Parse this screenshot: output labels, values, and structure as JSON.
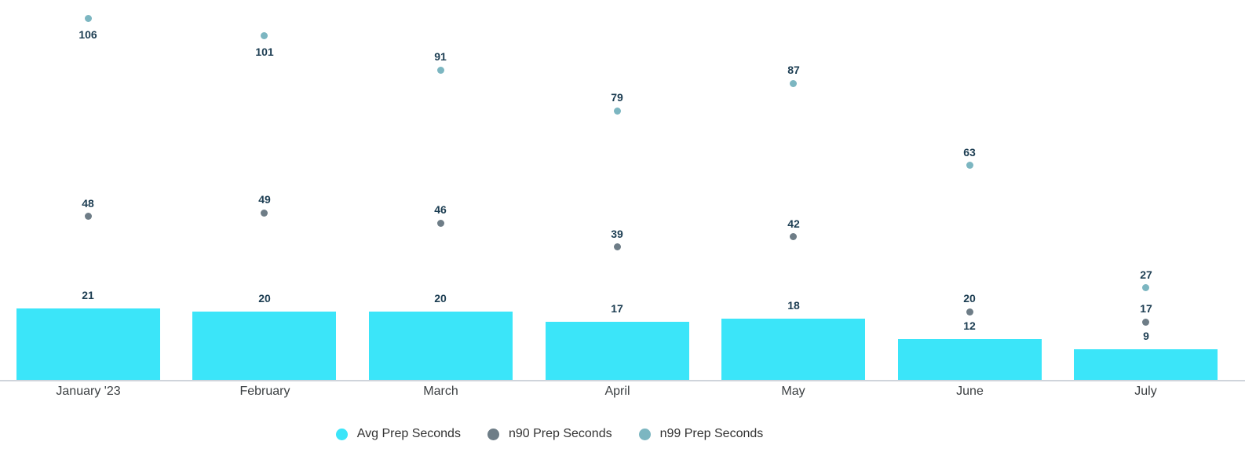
{
  "chart_data": {
    "type": "bar",
    "categories": [
      "January '23",
      "February",
      "March",
      "April",
      "May",
      "June",
      "July"
    ],
    "series": [
      {
        "name": "Avg Prep Seconds",
        "type": "bar",
        "color": "#3BE5F9",
        "values": [
          21,
          20,
          20,
          17,
          18,
          12,
          9
        ]
      },
      {
        "name": "n90 Prep Seconds",
        "type": "scatter",
        "color": "#6E7D87",
        "values": [
          48,
          49,
          46,
          39,
          42,
          20,
          17
        ]
      },
      {
        "name": "n99 Prep Seconds",
        "type": "scatter",
        "color": "#7CB6C1",
        "values": [
          106,
          101,
          91,
          79,
          87,
          63,
          27
        ]
      }
    ],
    "ylim": [
      0,
      112
    ],
    "grid": false,
    "value_labels": true,
    "legend_position": "bottom"
  },
  "styles": {
    "bar_color": "#3BE5F9",
    "n90_color": "#6E7D87",
    "n99_color": "#7CB6C1",
    "value_label_color": "#1C3D52",
    "axis_label_color": "#3C4043",
    "legend_text_color": "#333333",
    "axis_line_color": "#CFD4DB",
    "background": "#FFFFFF"
  }
}
